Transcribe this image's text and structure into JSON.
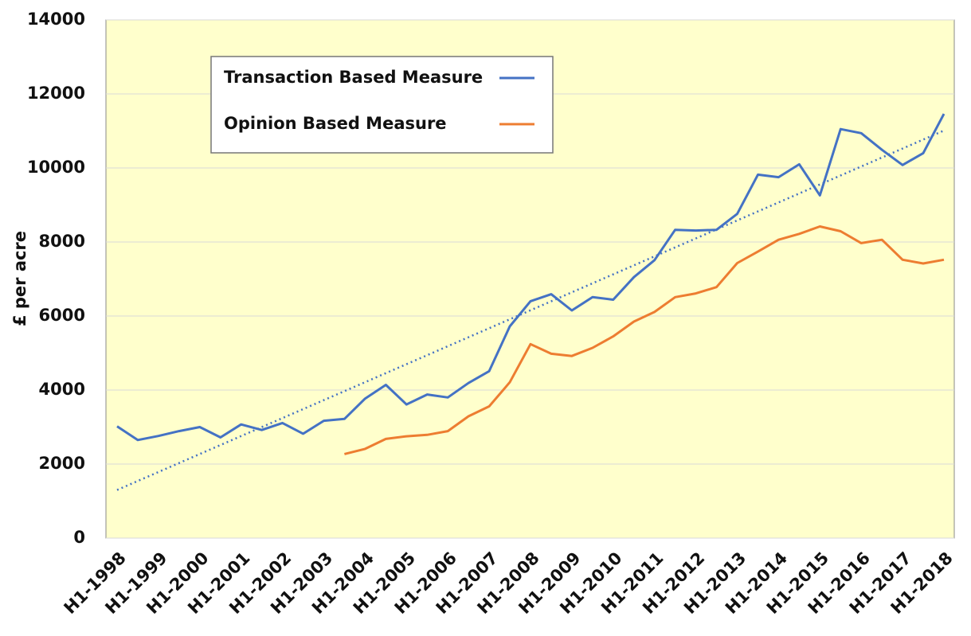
{
  "chart_data": {
    "type": "line",
    "y_label": "£ per acre",
    "categories": [
      "H1-1998",
      null,
      "H1-1999",
      null,
      "H1-2000",
      null,
      "H1-2001",
      null,
      "H1-2002",
      null,
      "H1-2003",
      null,
      "H1-2004",
      null,
      "H1-2005",
      null,
      "H1-2006",
      null,
      "H1-2007",
      null,
      "H1-2008",
      null,
      "H1-2009",
      null,
      "H1-2010",
      null,
      "H1-2011",
      null,
      "H1-2012",
      null,
      "H1-2013",
      null,
      "H1-2014",
      null,
      "H1-2015",
      null,
      "H1-2016",
      null,
      "H1-2017",
      null,
      "H1-2018"
    ],
    "series": [
      {
        "name": "Transaction Based Measure",
        "color": "#4472c4",
        "values": [
          3020,
          2650,
          2760,
          2890,
          3000,
          2720,
          3070,
          2920,
          3110,
          2820,
          3170,
          3220,
          3770,
          4140,
          3610,
          3880,
          3800,
          4190,
          4510,
          5720,
          6400,
          6590,
          6150,
          6510,
          6440,
          7050,
          7510,
          8330,
          8310,
          8330,
          8760,
          9820,
          9750,
          10100,
          9260,
          11050,
          10940,
          10490,
          10080,
          10400,
          11460
        ]
      },
      {
        "name": "Opinion Based Measure",
        "color": "#ed7d31",
        "values": [
          null,
          null,
          null,
          null,
          null,
          null,
          null,
          null,
          null,
          null,
          null,
          2270,
          2410,
          2680,
          2750,
          2790,
          2890,
          3290,
          3560,
          4210,
          5240,
          4980,
          4920,
          5140,
          5450,
          5850,
          6110,
          6510,
          6610,
          6780,
          7430,
          7740,
          8060,
          8220,
          8420,
          8290,
          7970,
          8060,
          7520,
          7420,
          7520
        ]
      }
    ],
    "trend": {
      "color": "#4472c4",
      "values": [
        1300,
        11010
      ]
    },
    "ylim": [
      0,
      14000
    ],
    "yticks": [
      0,
      2000,
      4000,
      6000,
      8000,
      10000,
      12000,
      14000
    ],
    "grid": true,
    "legend": "upper left",
    "background": "#ffffcc"
  }
}
